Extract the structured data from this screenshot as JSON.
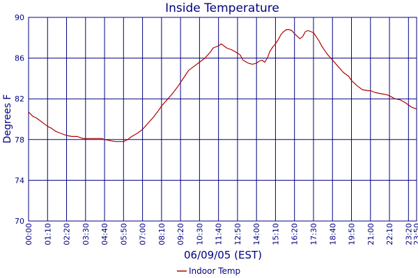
{
  "chart_data": {
    "type": "line",
    "title": "Inside Temperature",
    "xlabel": "06/09/05 (EST)",
    "ylabel": "Degrees F",
    "ylim": [
      70,
      90
    ],
    "yticks": [
      70,
      74,
      78,
      82,
      86,
      90
    ],
    "xrange_minutes": [
      0,
      1430
    ],
    "xticks": [
      "00:00",
      "01:10",
      "02:20",
      "03:30",
      "04:40",
      "05:50",
      "07:00",
      "08:10",
      "09:20",
      "10:30",
      "11:40",
      "12:50",
      "14:00",
      "15:10",
      "16:20",
      "17:30",
      "18:40",
      "19:50",
      "21:00",
      "22:10",
      "23:20",
      "23:50"
    ],
    "grid": true,
    "legend_position": "bottom-center",
    "colors": {
      "title": "#000080",
      "axis_text": "#000080",
      "grid": "#000080",
      "series": "#b00000"
    },
    "series": [
      {
        "name": "Indoor Temp",
        "x": [
          "00:00",
          "00:15",
          "00:30",
          "00:45",
          "01:00",
          "01:10",
          "01:25",
          "01:40",
          "02:00",
          "02:20",
          "02:40",
          "03:00",
          "03:20",
          "03:30",
          "03:50",
          "04:10",
          "04:30",
          "04:40",
          "05:00",
          "05:20",
          "05:35",
          "05:50",
          "06:05",
          "06:20",
          "06:40",
          "07:00",
          "07:20",
          "07:40",
          "08:00",
          "08:10",
          "08:30",
          "08:50",
          "09:10",
          "09:20",
          "09:40",
          "09:50",
          "10:00",
          "10:20",
          "10:30",
          "10:50",
          "11:10",
          "11:20",
          "11:40",
          "11:50",
          "12:10",
          "12:30",
          "12:50",
          "13:00",
          "13:10",
          "13:30",
          "13:45",
          "14:00",
          "14:10",
          "14:20",
          "14:30",
          "14:40",
          "14:50",
          "15:00",
          "15:10",
          "15:20",
          "15:30",
          "15:40",
          "15:50",
          "16:00",
          "16:10",
          "16:20",
          "16:40",
          "16:50",
          "17:00",
          "17:10",
          "17:20",
          "17:30",
          "17:40",
          "17:50",
          "18:00",
          "18:10",
          "18:20",
          "18:40",
          "19:00",
          "19:20",
          "19:40",
          "19:50",
          "20:10",
          "20:30",
          "20:50",
          "21:00",
          "21:20",
          "21:40",
          "22:00",
          "22:10",
          "22:30",
          "22:50",
          "23:10",
          "23:20",
          "23:30",
          "23:40",
          "23:50"
        ],
        "values": [
          80.7,
          80.3,
          80.1,
          79.8,
          79.5,
          79.3,
          79.1,
          78.8,
          78.6,
          78.4,
          78.3,
          78.3,
          78.1,
          78.1,
          78.1,
          78.1,
          78.1,
          78.0,
          77.9,
          77.8,
          77.8,
          77.8,
          78.0,
          78.3,
          78.6,
          79.0,
          79.6,
          80.2,
          80.9,
          81.3,
          81.9,
          82.5,
          83.2,
          83.6,
          84.4,
          84.8,
          85.0,
          85.4,
          85.6,
          86.0,
          86.6,
          87.0,
          87.2,
          87.4,
          87.0,
          86.8,
          86.5,
          86.3,
          85.8,
          85.5,
          85.4,
          85.5,
          85.7,
          85.8,
          85.6,
          86.0,
          86.7,
          87.1,
          87.4,
          87.8,
          88.3,
          88.6,
          88.8,
          88.8,
          88.7,
          88.4,
          87.9,
          88.1,
          88.6,
          88.7,
          88.6,
          88.5,
          88.1,
          87.7,
          87.2,
          86.8,
          86.4,
          85.8,
          85.2,
          84.6,
          84.2,
          83.8,
          83.3,
          82.9,
          82.8,
          82.8,
          82.6,
          82.5,
          82.4,
          82.3,
          82.0,
          81.9,
          81.6,
          81.4,
          81.2,
          81.1,
          81.0
        ]
      }
    ]
  }
}
